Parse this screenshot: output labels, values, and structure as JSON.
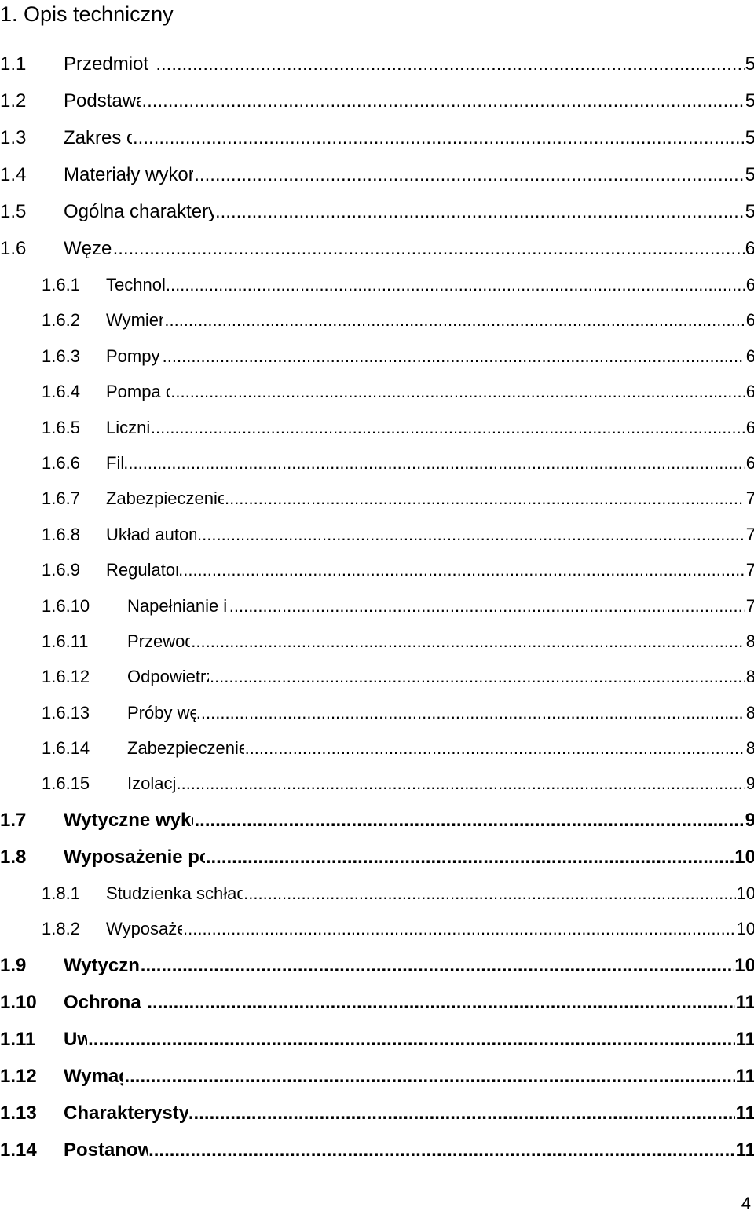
{
  "heading": "1. Opis techniczny",
  "toc": [
    {
      "num": "1.1",
      "label": "Przedmiot i cel opracowania",
      "page": "5",
      "level": 1,
      "bold": false
    },
    {
      "num": "1.2",
      "label": "Podstawa opracowania",
      "page": "5",
      "level": 1,
      "bold": false
    },
    {
      "num": "1.3",
      "label": "Zakres opracowania",
      "page": "5",
      "level": 1,
      "bold": false
    },
    {
      "num": "1.4",
      "label": "Materiały wykorzystane przy projektowaniu",
      "page": "5",
      "level": 1,
      "bold": false
    },
    {
      "num": "1.5",
      "label": "Ogólna charakterystyka obiektu zasilanego w ciepło",
      "page": "5",
      "level": 1,
      "bold": false
    },
    {
      "num": "1.6",
      "label": "Węzeł cieplny",
      "page": "6",
      "level": 1,
      "bold": false
    },
    {
      "num": "1.6.1",
      "label": "Technologia węzła",
      "page": "6",
      "level": 2
    },
    {
      "num": "1.6.2",
      "label": "Wymienniki ciepła",
      "page": "6",
      "level": 2
    },
    {
      "num": "1.6.3",
      "label": "Pompy obiegowe",
      "page": "6",
      "level": 2
    },
    {
      "num": "1.6.4",
      "label": "Pompa cyrkulacyjna",
      "page": "6",
      "level": 2
    },
    {
      "num": "1.6.5",
      "label": "Licznik ciepła",
      "page": "6",
      "level": 2
    },
    {
      "num": "1.6.6",
      "label": "Filtry",
      "page": "6",
      "level": 2
    },
    {
      "num": "1.6.7",
      "label": "Zabezpieczenie instalacji c.o., c.t. i c.w.u.",
      "page": "7",
      "level": 2
    },
    {
      "num": "1.6.8",
      "label": "Układ automatycznej regulacji",
      "page": "7",
      "level": 2
    },
    {
      "num": "1.6.9",
      "label": "Regulator hydrauliczny",
      "page": "7",
      "level": 2
    },
    {
      "num": "1.6.10",
      "label": "Napełnianie i uzupełnianie instalacji",
      "page": "7",
      "level": 2
    },
    {
      "num": "1.6.11",
      "label": "Przewody i armatura",
      "page": "8",
      "level": 2
    },
    {
      "num": "1.6.12",
      "label": "Odpowietrzenia przewodów",
      "page": "8",
      "level": 2
    },
    {
      "num": "1.6.13",
      "label": "Próby węzła cieplnego",
      "page": "8",
      "level": 2
    },
    {
      "num": "1.6.14",
      "label": "Zabezpieczenie antykorozyjne przewodów",
      "page": "8",
      "level": 2
    },
    {
      "num": "1.6.15",
      "label": "Izolacje cieplne",
      "page": "9",
      "level": 2
    },
    {
      "num": "1.7",
      "label": "Wytyczne wykonania prac budowlanych",
      "page": "9",
      "level": 1,
      "bold": true
    },
    {
      "num": "1.8",
      "label": "Wyposażenie pomieszczenia węzła cieplnego",
      "page": "10",
      "level": 1,
      "bold": true
    },
    {
      "num": "1.8.1",
      "label": "Studzienka schładzająca i odprowadzanie ścieków",
      "page": "10",
      "level": 2
    },
    {
      "num": "1.8.2",
      "label": "Wyposażenie dodatkowe",
      "page": "10",
      "level": 2
    },
    {
      "num": "1.9",
      "label": "Wytyczne elektryczne",
      "page": "10",
      "level": 1,
      "bold": true
    },
    {
      "num": "1.10",
      "label": "Ochrona przed hałasem",
      "page": "11",
      "level": 1,
      "bold": true
    },
    {
      "num": "1.11",
      "label": "Uwagi",
      "page": "11",
      "level": 1,
      "bold": true
    },
    {
      "num": "1.12",
      "label": "Wymagania BHP",
      "page": "11",
      "level": 1,
      "bold": true
    },
    {
      "num": "1.13",
      "label": "Charakterystyka energetyczna obiektu",
      "page": "11",
      "level": 1,
      "bold": true
    },
    {
      "num": "1.14",
      "label": "Postanowienia końcowe",
      "page": "11",
      "level": 1,
      "bold": true
    }
  ],
  "page_number": "4"
}
